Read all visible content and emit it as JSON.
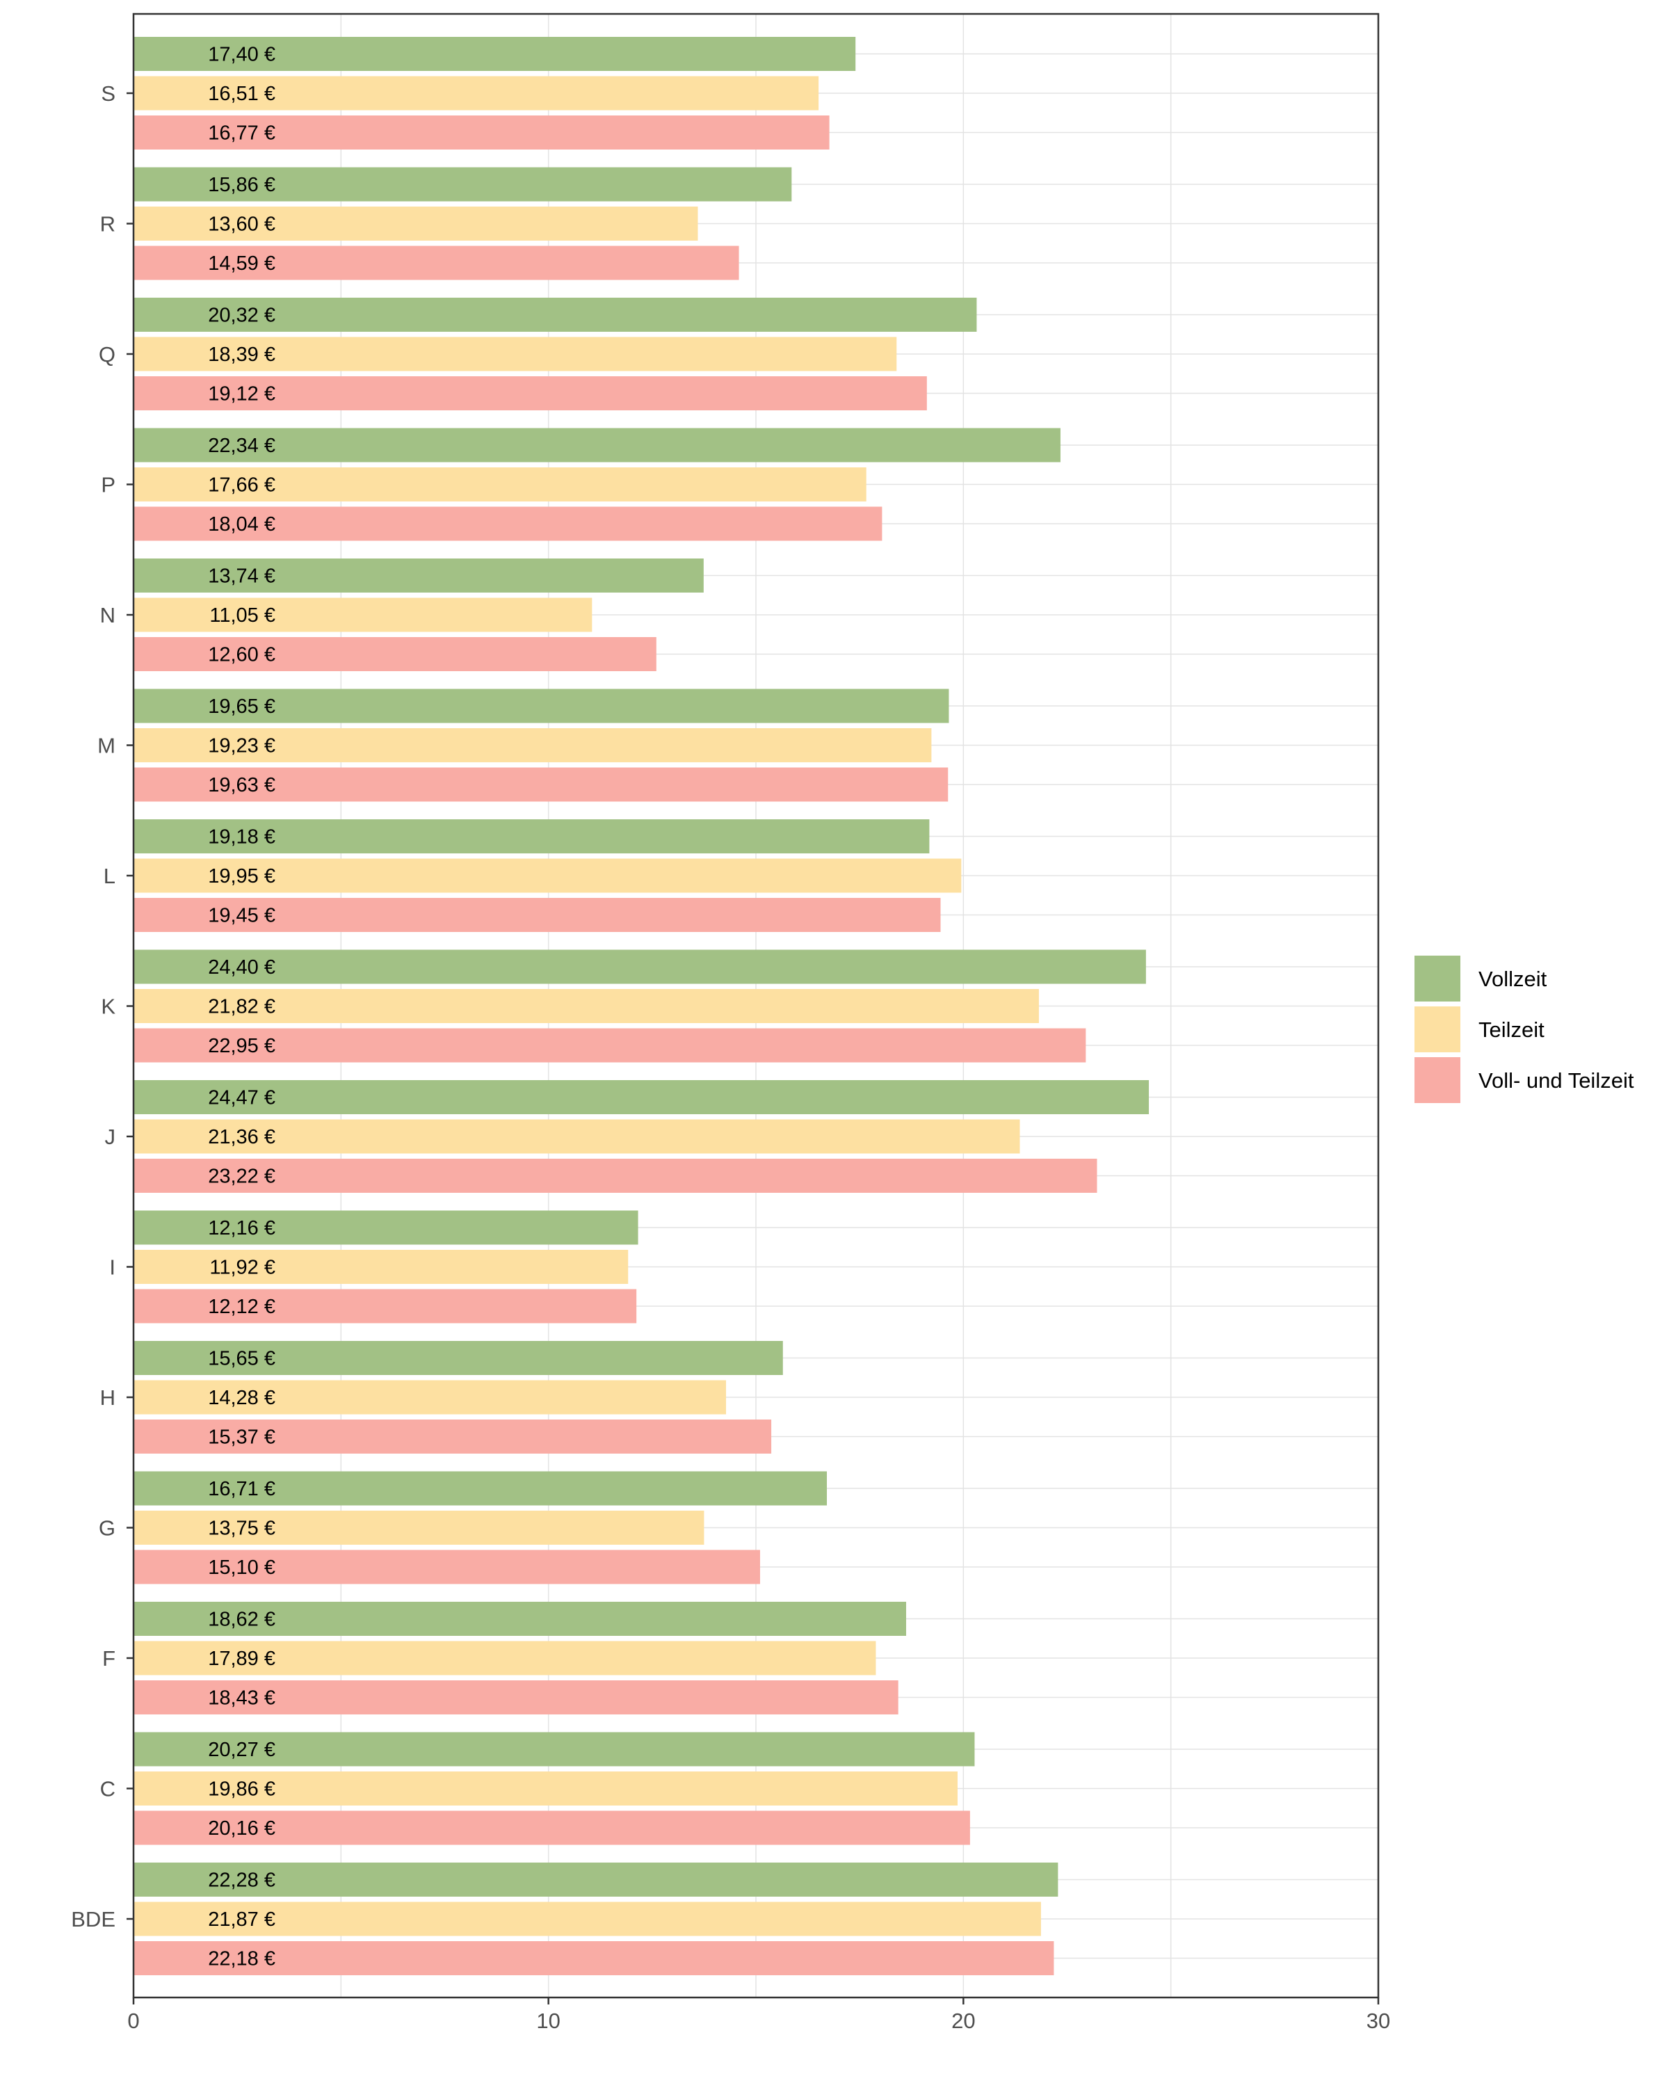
{
  "chart_data": {
    "type": "bar",
    "orientation": "horizontal",
    "title": "",
    "xlabel": "",
    "ylabel": "",
    "xlim": [
      0,
      30
    ],
    "x_ticks": [
      0,
      10,
      20,
      30
    ],
    "grid": true,
    "legend_position": "right",
    "categories": [
      "S",
      "R",
      "Q",
      "P",
      "N",
      "M",
      "L",
      "K",
      "J",
      "I",
      "H",
      "G",
      "F",
      "C",
      "BDE"
    ],
    "series": [
      {
        "name": "Vollzeit",
        "color": "#a2c185",
        "values": [
          17.4,
          15.86,
          20.32,
          22.34,
          13.74,
          19.65,
          19.18,
          24.4,
          24.47,
          12.16,
          15.65,
          16.71,
          18.62,
          20.27,
          22.28
        ],
        "labels": [
          "17,40 €",
          "15,86 €",
          "20,32 €",
          "22,34 €",
          "13,74 €",
          "19,65 €",
          "19,18 €",
          "24,40 €",
          "24,47 €",
          "12,16 €",
          "15,65 €",
          "16,71 €",
          "18,62 €",
          "20,27 €",
          "22,28 €"
        ]
      },
      {
        "name": "Teilzeit",
        "color": "#fde0a1",
        "values": [
          16.51,
          13.6,
          18.39,
          17.66,
          11.05,
          19.23,
          19.95,
          21.82,
          21.36,
          11.92,
          14.28,
          13.75,
          17.89,
          19.86,
          21.87
        ],
        "labels": [
          "16,51 €",
          "13,60 €",
          "18,39 €",
          "17,66 €",
          "11,05 €",
          "19,23 €",
          "19,95 €",
          "21,82 €",
          "21,36 €",
          "11,92 €",
          "14,28 €",
          "13,75 €",
          "17,89 €",
          "19,86 €",
          "21,87 €"
        ]
      },
      {
        "name": "Voll- und Teilzeit",
        "color": "#f9aca5",
        "values": [
          16.77,
          14.59,
          19.12,
          18.04,
          12.6,
          19.63,
          19.45,
          22.95,
          23.22,
          12.12,
          15.37,
          15.1,
          18.43,
          20.16,
          22.18
        ],
        "labels": [
          "16,77 €",
          "14,59 €",
          "19,12 €",
          "18,04 €",
          "12,60 €",
          "19,63 €",
          "19,45 €",
          "22,95 €",
          "23,22 €",
          "12,12 €",
          "15,37 €",
          "15,10 €",
          "18,43 €",
          "20,16 €",
          "22,18 €"
        ]
      }
    ]
  }
}
